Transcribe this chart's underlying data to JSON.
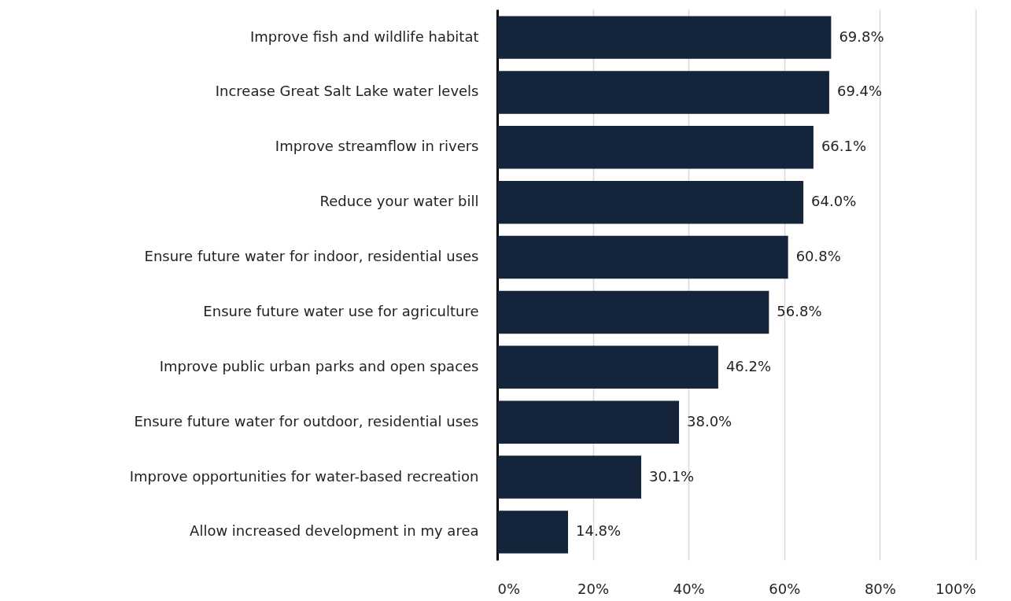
{
  "chart_data": {
    "type": "bar",
    "orientation": "horizontal",
    "categories": [
      "Improve fish and wildlife habitat",
      "Increase Great Salt Lake water levels",
      "Improve streamflow in rivers",
      "Reduce your water bill",
      "Ensure future water for indoor, residential uses",
      "Ensure future water use for agriculture",
      "Improve public urban parks and open spaces",
      "Ensure future water for outdoor, residential uses",
      "Improve opportunities for water-based recreation",
      "Allow increased development in my area"
    ],
    "values": [
      69.8,
      69.4,
      66.1,
      64.0,
      60.8,
      56.8,
      46.2,
      38.0,
      30.1,
      14.8
    ],
    "value_labels": [
      "69.8%",
      "69.4%",
      "66.1%",
      "64.0%",
      "60.8%",
      "56.8%",
      "46.2%",
      "38.0%",
      "30.1%",
      "14.8%"
    ],
    "color": "#14253b",
    "xlim": [
      0,
      100
    ],
    "xticks": [
      {
        "value": 0,
        "label": "0%"
      },
      {
        "value": 20,
        "label": "20%"
      },
      {
        "value": 40,
        "label": "40%"
      },
      {
        "value": 60,
        "label": "60%"
      },
      {
        "value": 80,
        "label": "80%"
      },
      {
        "value": 100,
        "label": "100%"
      }
    ],
    "grid": "x"
  }
}
